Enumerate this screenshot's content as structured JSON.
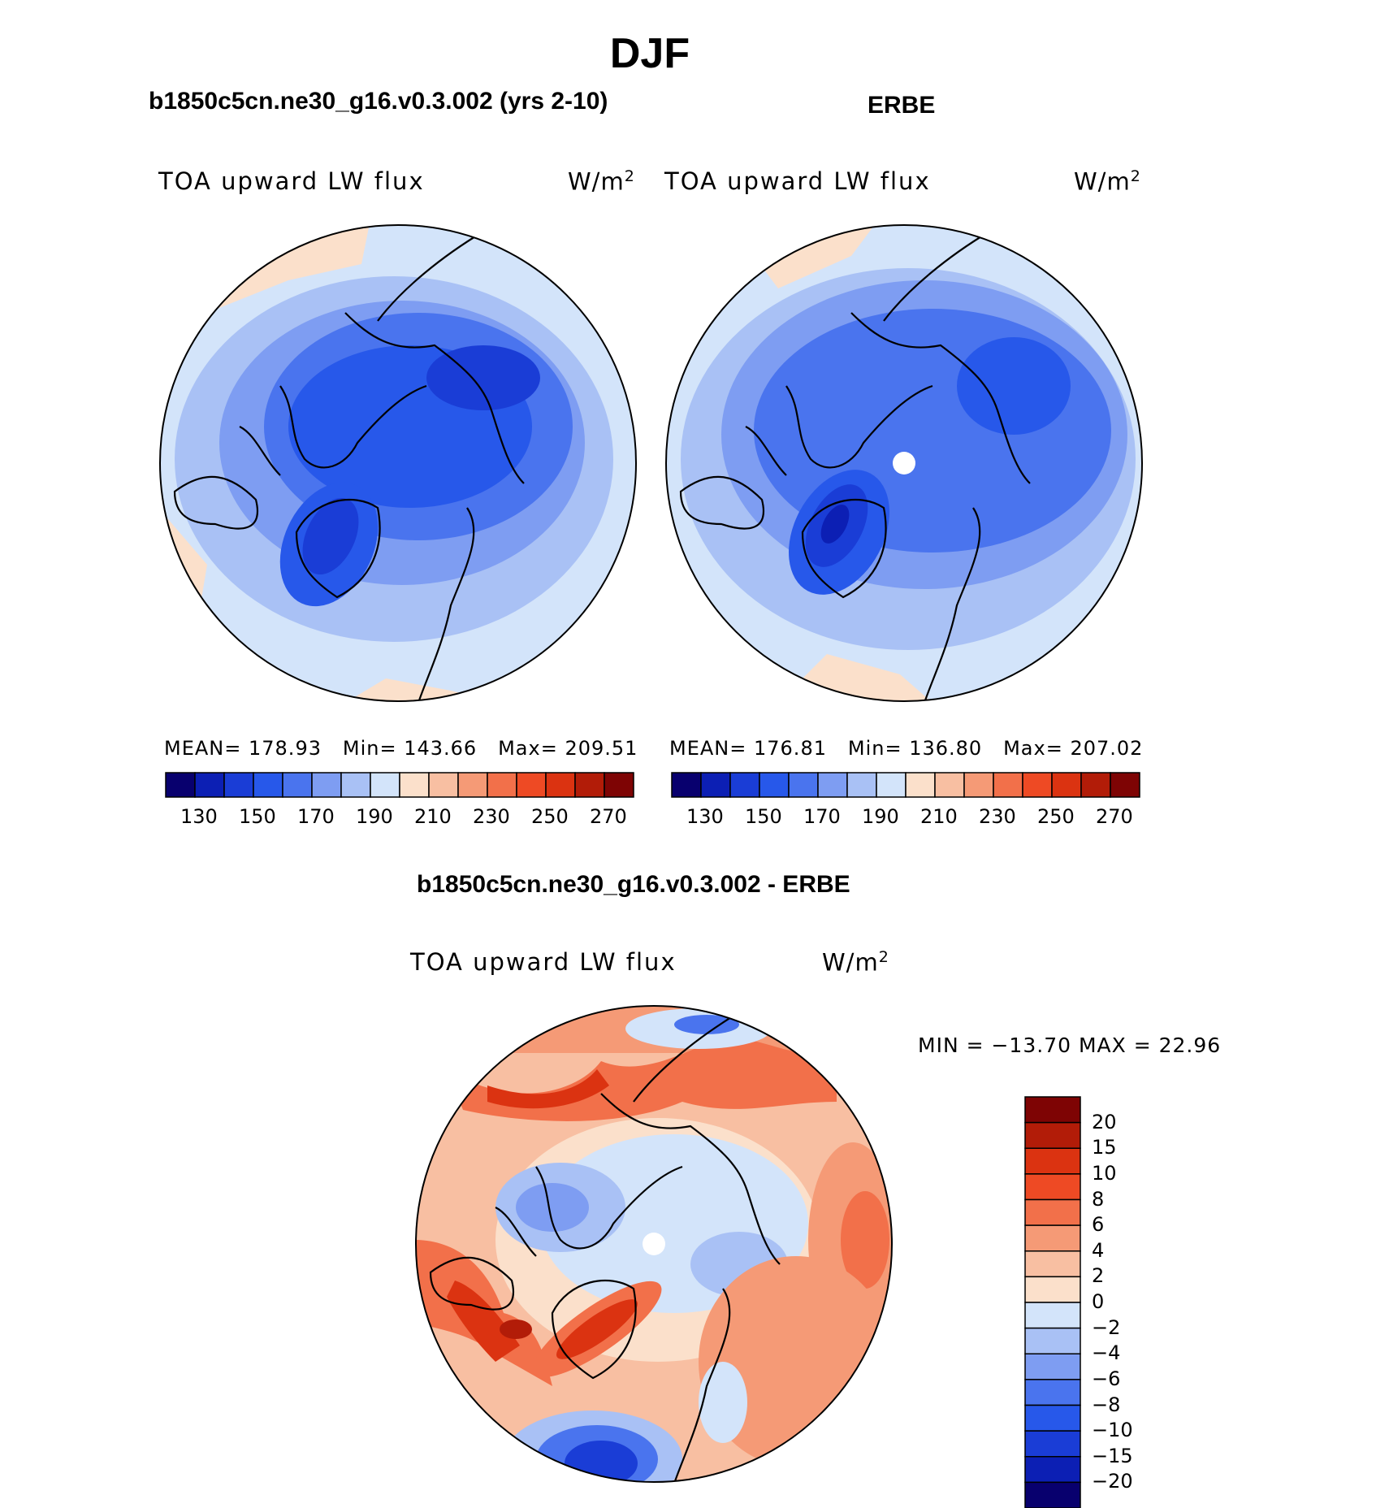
{
  "title": "DJF",
  "panels": {
    "left": {
      "case_label": "b1850c5cn.ne30_g16.v0.3.002 (yrs 2-10)",
      "variable": "TOA upward LW flux",
      "units": "W/m",
      "units_exp": "2",
      "mean_label": "MEAN=",
      "mean": "178.93",
      "min_label": "Min=",
      "min": "143.66",
      "max_label": "Max=",
      "max": "209.51"
    },
    "right": {
      "case_label": "ERBE",
      "variable": "TOA upward LW flux",
      "units": "W/m",
      "units_exp": "2",
      "mean_label": "MEAN=",
      "mean": "176.81",
      "min_label": "Min=",
      "min": "136.80",
      "max_label": "Max=",
      "max": "207.02"
    },
    "diff": {
      "case_label": "b1850c5cn.ne30_g16.v0.3.002 - ERBE",
      "variable": "TOA upward LW flux",
      "units": "W/m",
      "units_exp": "2",
      "range_text": "MIN = −13.70 MAX =  22.96"
    }
  },
  "colorbar_abs": {
    "colors": [
      "#08006e",
      "#0c1fb4",
      "#1a3dd6",
      "#2758ea",
      "#4a74ee",
      "#7e9df2",
      "#a9c1f5",
      "#d3e4fa",
      "#fbe0cb",
      "#f8bfa2",
      "#f59a76",
      "#f2704a",
      "#ee4a24",
      "#db3311",
      "#b21c08",
      "#7e0404"
    ],
    "labels": [
      "130",
      "150",
      "170",
      "190",
      "210",
      "230",
      "250",
      "270"
    ]
  },
  "colorbar_diff": {
    "colors": [
      "#7e0404",
      "#b21c08",
      "#db3311",
      "#ee4a24",
      "#f2704a",
      "#f59a76",
      "#f8bfa2",
      "#fbe0cb",
      "#d3e4fa",
      "#a9c1f5",
      "#7e9df2",
      "#4a74ee",
      "#2758ea",
      "#1a3dd6",
      "#0c1fb4",
      "#08006e"
    ],
    "labels": [
      "20",
      "15",
      "10",
      "8",
      "6",
      "4",
      "2",
      "0",
      "−2",
      "−4",
      "−6",
      "−8",
      "−10",
      "−15",
      "−20"
    ]
  },
  "chart_data": {
    "type": "heatmap",
    "projection": "north polar stereographic",
    "season": "DJF",
    "fields": [
      {
        "name": "b1850c5cn.ne30_g16.v0.3.002 (yrs 2-10)",
        "variable": "TOA upward LW flux",
        "units": "W/m2",
        "mean": 178.93,
        "min": 143.66,
        "max": 209.51,
        "levels": [
          130,
          140,
          150,
          160,
          170,
          180,
          190,
          200,
          210,
          220,
          230,
          240,
          250,
          260,
          270
        ]
      },
      {
        "name": "ERBE",
        "variable": "TOA upward LW flux",
        "units": "W/m2",
        "mean": 176.81,
        "min": 136.8,
        "max": 207.02,
        "levels": [
          130,
          140,
          150,
          160,
          170,
          180,
          190,
          200,
          210,
          220,
          230,
          240,
          250,
          260,
          270
        ]
      },
      {
        "name": "b1850c5cn.ne30_g16.v0.3.002 - ERBE",
        "variable": "TOA upward LW flux",
        "units": "W/m2",
        "min": -13.7,
        "max": 22.96,
        "levels": [
          -20,
          -15,
          -10,
          -8,
          -6,
          -4,
          -2,
          0,
          2,
          4,
          6,
          8,
          10,
          15,
          20
        ]
      }
    ]
  }
}
